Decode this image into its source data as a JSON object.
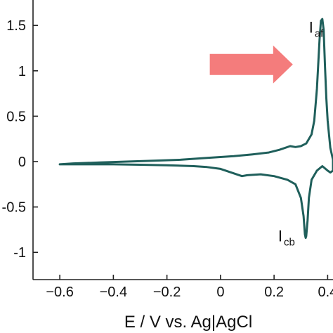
{
  "chart_data": {
    "type": "line",
    "xlabel": "E / V vs. Ag|AgCl",
    "ylabel": "",
    "xlim": [
      -0.7,
      0.42
    ],
    "ylim": [
      -1.3,
      1.78
    ],
    "x_ticks": [
      -0.6,
      -0.4,
      -0.2,
      0,
      0.2,
      0.4
    ],
    "x_tick_labels": [
      "−0.6",
      "−0.4",
      "−0.2",
      "0",
      "0.2",
      "0.4"
    ],
    "y_ticks": [
      1.5,
      1,
      0.5,
      0,
      -0.5,
      -1
    ],
    "y_tick_labels": [
      "1.5",
      "1",
      "0.5",
      "0",
      "-0.5",
      "-1"
    ],
    "grid": false,
    "series": [
      {
        "color": "#1f5f5b",
        "x": [
          -0.6,
          -0.55,
          -0.45,
          -0.35,
          -0.25,
          -0.15,
          -0.05,
          0.05,
          0.12,
          0.18,
          0.22,
          0.26,
          0.28,
          0.3,
          0.32,
          0.34,
          0.35,
          0.36,
          0.37,
          0.375,
          0.38,
          0.385,
          0.39,
          0.395,
          0.4,
          0.41,
          0.42,
          0.42,
          0.41,
          0.4,
          0.38,
          0.36,
          0.34,
          0.33,
          0.325,
          0.32,
          0.318,
          0.315,
          0.31,
          0.3,
          0.28,
          0.25,
          0.2,
          0.15,
          0.1,
          0.08,
          0.05,
          0.0,
          -0.05,
          -0.1,
          -0.2,
          -0.3,
          -0.4,
          -0.5,
          -0.58,
          -0.6
        ],
        "y": [
          -0.03,
          -0.02,
          -0.01,
          0.0,
          0.01,
          0.02,
          0.04,
          0.06,
          0.08,
          0.1,
          0.13,
          0.17,
          0.16,
          0.17,
          0.2,
          0.3,
          0.45,
          0.8,
          1.35,
          1.55,
          1.57,
          1.45,
          1.05,
          0.7,
          0.45,
          0.15,
          0.02,
          -0.1,
          -0.12,
          -0.1,
          -0.05,
          -0.1,
          -0.2,
          -0.4,
          -0.65,
          -0.82,
          -0.84,
          -0.8,
          -0.6,
          -0.4,
          -0.25,
          -0.2,
          -0.16,
          -0.14,
          -0.15,
          -0.16,
          -0.13,
          -0.08,
          -0.06,
          -0.05,
          -0.04,
          -0.035,
          -0.03,
          -0.03,
          -0.03,
          -0.03
        ]
      }
    ],
    "annotations": [
      {
        "text": "I",
        "subscript": "af",
        "x": 0.33,
        "y": 1.42
      },
      {
        "text": "I",
        "subscript": "cb",
        "x": 0.215,
        "y": -0.88
      }
    ],
    "arrow": {
      "direction": "right",
      "color": "#f47c7c",
      "from_x": -0.04,
      "to_x": 0.27,
      "y": 1.07
    }
  }
}
